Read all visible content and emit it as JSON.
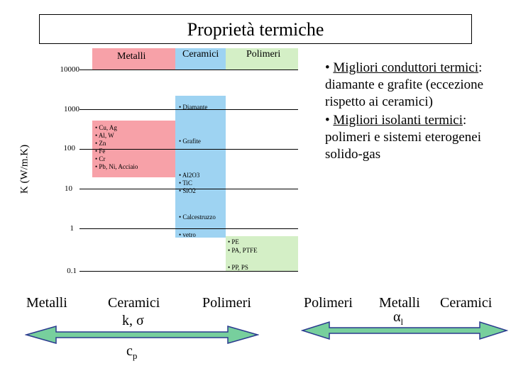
{
  "title": "Proprietà termiche",
  "columns": {
    "metalli": "Metalli",
    "ceramici": "Ceramici",
    "polimeri": "Polimeri"
  },
  "colors": {
    "metalli": "#f7a1a8",
    "ceramici": "#9ed3f2",
    "polimeri": "#d4efc6",
    "arrow": "#77cf9d"
  },
  "y_axis": {
    "label": "K (W/m.K)",
    "ticks": [
      "10000",
      "1000",
      "100",
      "10",
      "1",
      "0.1"
    ]
  },
  "materials": {
    "metals": [
      "• Cu, Ag",
      "• Al, W",
      "• Zn",
      "• Fe",
      "• Cr",
      "• Pb, Ni, Acciaio"
    ],
    "diamante": "• Diamante",
    "grafite": "• Grafite",
    "ceramics": [
      "• Al2O3",
      "• TiC",
      "• SiO2"
    ],
    "calcestruzzo": "• Calcestruzzo",
    "vetro": "• vetro",
    "polymers_a": [
      "• PE",
      "• PA, PTFE"
    ],
    "polymers_b": "• PP, PS"
  },
  "notes": {
    "n1_prefix": "• ",
    "n1_underlined": "Migliori conduttori termici",
    "n1_rest": ": diamante e grafite (eccezione rispetto ai ceramici)",
    "n2_prefix": "• ",
    "n2_underlined": "Migliori isolanti termici",
    "n2_rest": ": polimeri e sistemi eterogenei solido-gas"
  },
  "bottom_left": {
    "metalli": "Metalli",
    "ceramici": "Ceramici",
    "polimeri": "Polimeri",
    "k_sigma": "k, σ",
    "cp_base": "c",
    "cp_sub": "p"
  },
  "bottom_right": {
    "polimeri": "Polimeri",
    "metalli": "Metalli",
    "ceramici": "Ceramici",
    "alpha_base": "α",
    "alpha_sub": "l"
  }
}
